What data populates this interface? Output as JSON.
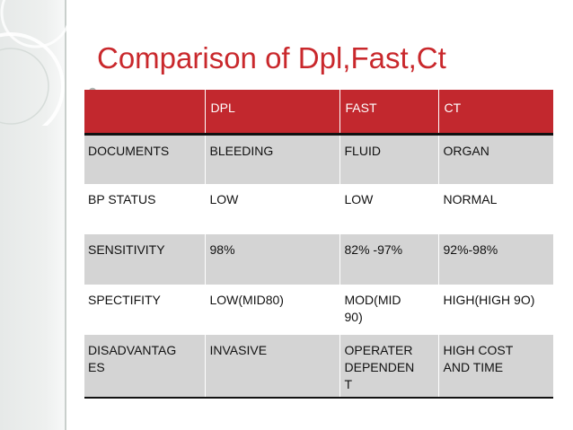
{
  "slide": {
    "title": "Comparison of Dpl,Fast,Ct"
  },
  "table": {
    "headers": [
      "",
      "DPL",
      "FAST",
      "CT"
    ],
    "rows": [
      [
        "DOCUMENTS",
        "BLEEDING",
        "FLUID",
        "ORGAN"
      ],
      [
        "BP STATUS",
        "LOW",
        "LOW",
        "NORMAL"
      ],
      [
        "SENSITIVITY",
        "98%",
        "82% -97%",
        "92%-98%"
      ],
      [
        "SPECTIFITY",
        "LOW(MID80)",
        "MOD(MID\n90)",
        "HIGH(HIGH 9O)"
      ],
      [
        "DISADVANTAG\nES",
        "INVASIVE",
        "OPERATER\nDEPENDEN\nT",
        "HIGH COST\nAND TIME"
      ]
    ]
  },
  "colors": {
    "title": "#c9282c",
    "header_bg": "#c2282e",
    "stripe": "#d4d4d4"
  }
}
